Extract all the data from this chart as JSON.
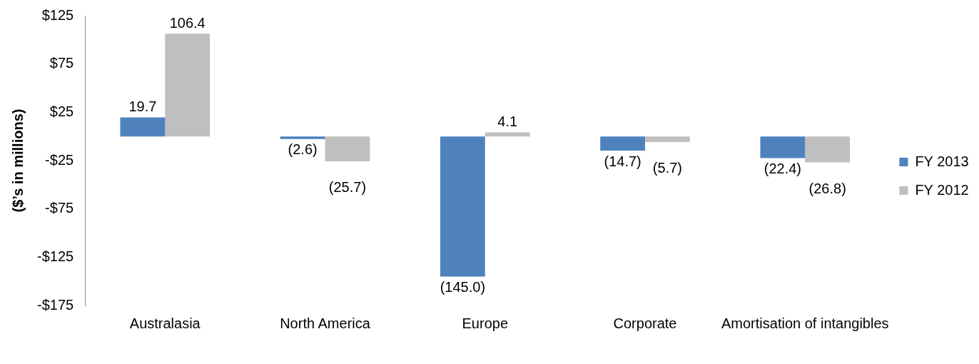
{
  "chart_data": {
    "type": "bar",
    "ylabel": "($’s in millions)",
    "categories": [
      "Australasia",
      "North America",
      "Europe",
      "Corporate",
      "Amortisation of intangibles"
    ],
    "series": [
      {
        "name": "FY 2013",
        "color": "#4f81bd",
        "values": [
          19.7,
          -2.6,
          -145.0,
          -14.7,
          -22.4
        ],
        "value_labels": [
          "19.7",
          "(2.6)",
          "(145.0)",
          "(14.7)",
          "(22.4)"
        ]
      },
      {
        "name": "FY 2012",
        "color": "#bfbfbf",
        "values": [
          106.4,
          -25.7,
          4.1,
          -5.7,
          -26.8
        ],
        "value_labels": [
          "106.4",
          "(25.7)",
          "4.1",
          "(5.7)",
          "(26.8)"
        ]
      }
    ],
    "ylim": [
      -175,
      125
    ],
    "yticks": [
      {
        "value": -175,
        "label": "-$175"
      },
      {
        "value": -125,
        "label": "-$125"
      },
      {
        "value": -75,
        "label": "-$75"
      },
      {
        "value": -25,
        "label": "-$25"
      },
      {
        "value": 25,
        "label": "$25"
      },
      {
        "value": 75,
        "label": "$75"
      },
      {
        "value": 125,
        "label": "$125"
      }
    ],
    "legend": "right",
    "grid": false
  }
}
